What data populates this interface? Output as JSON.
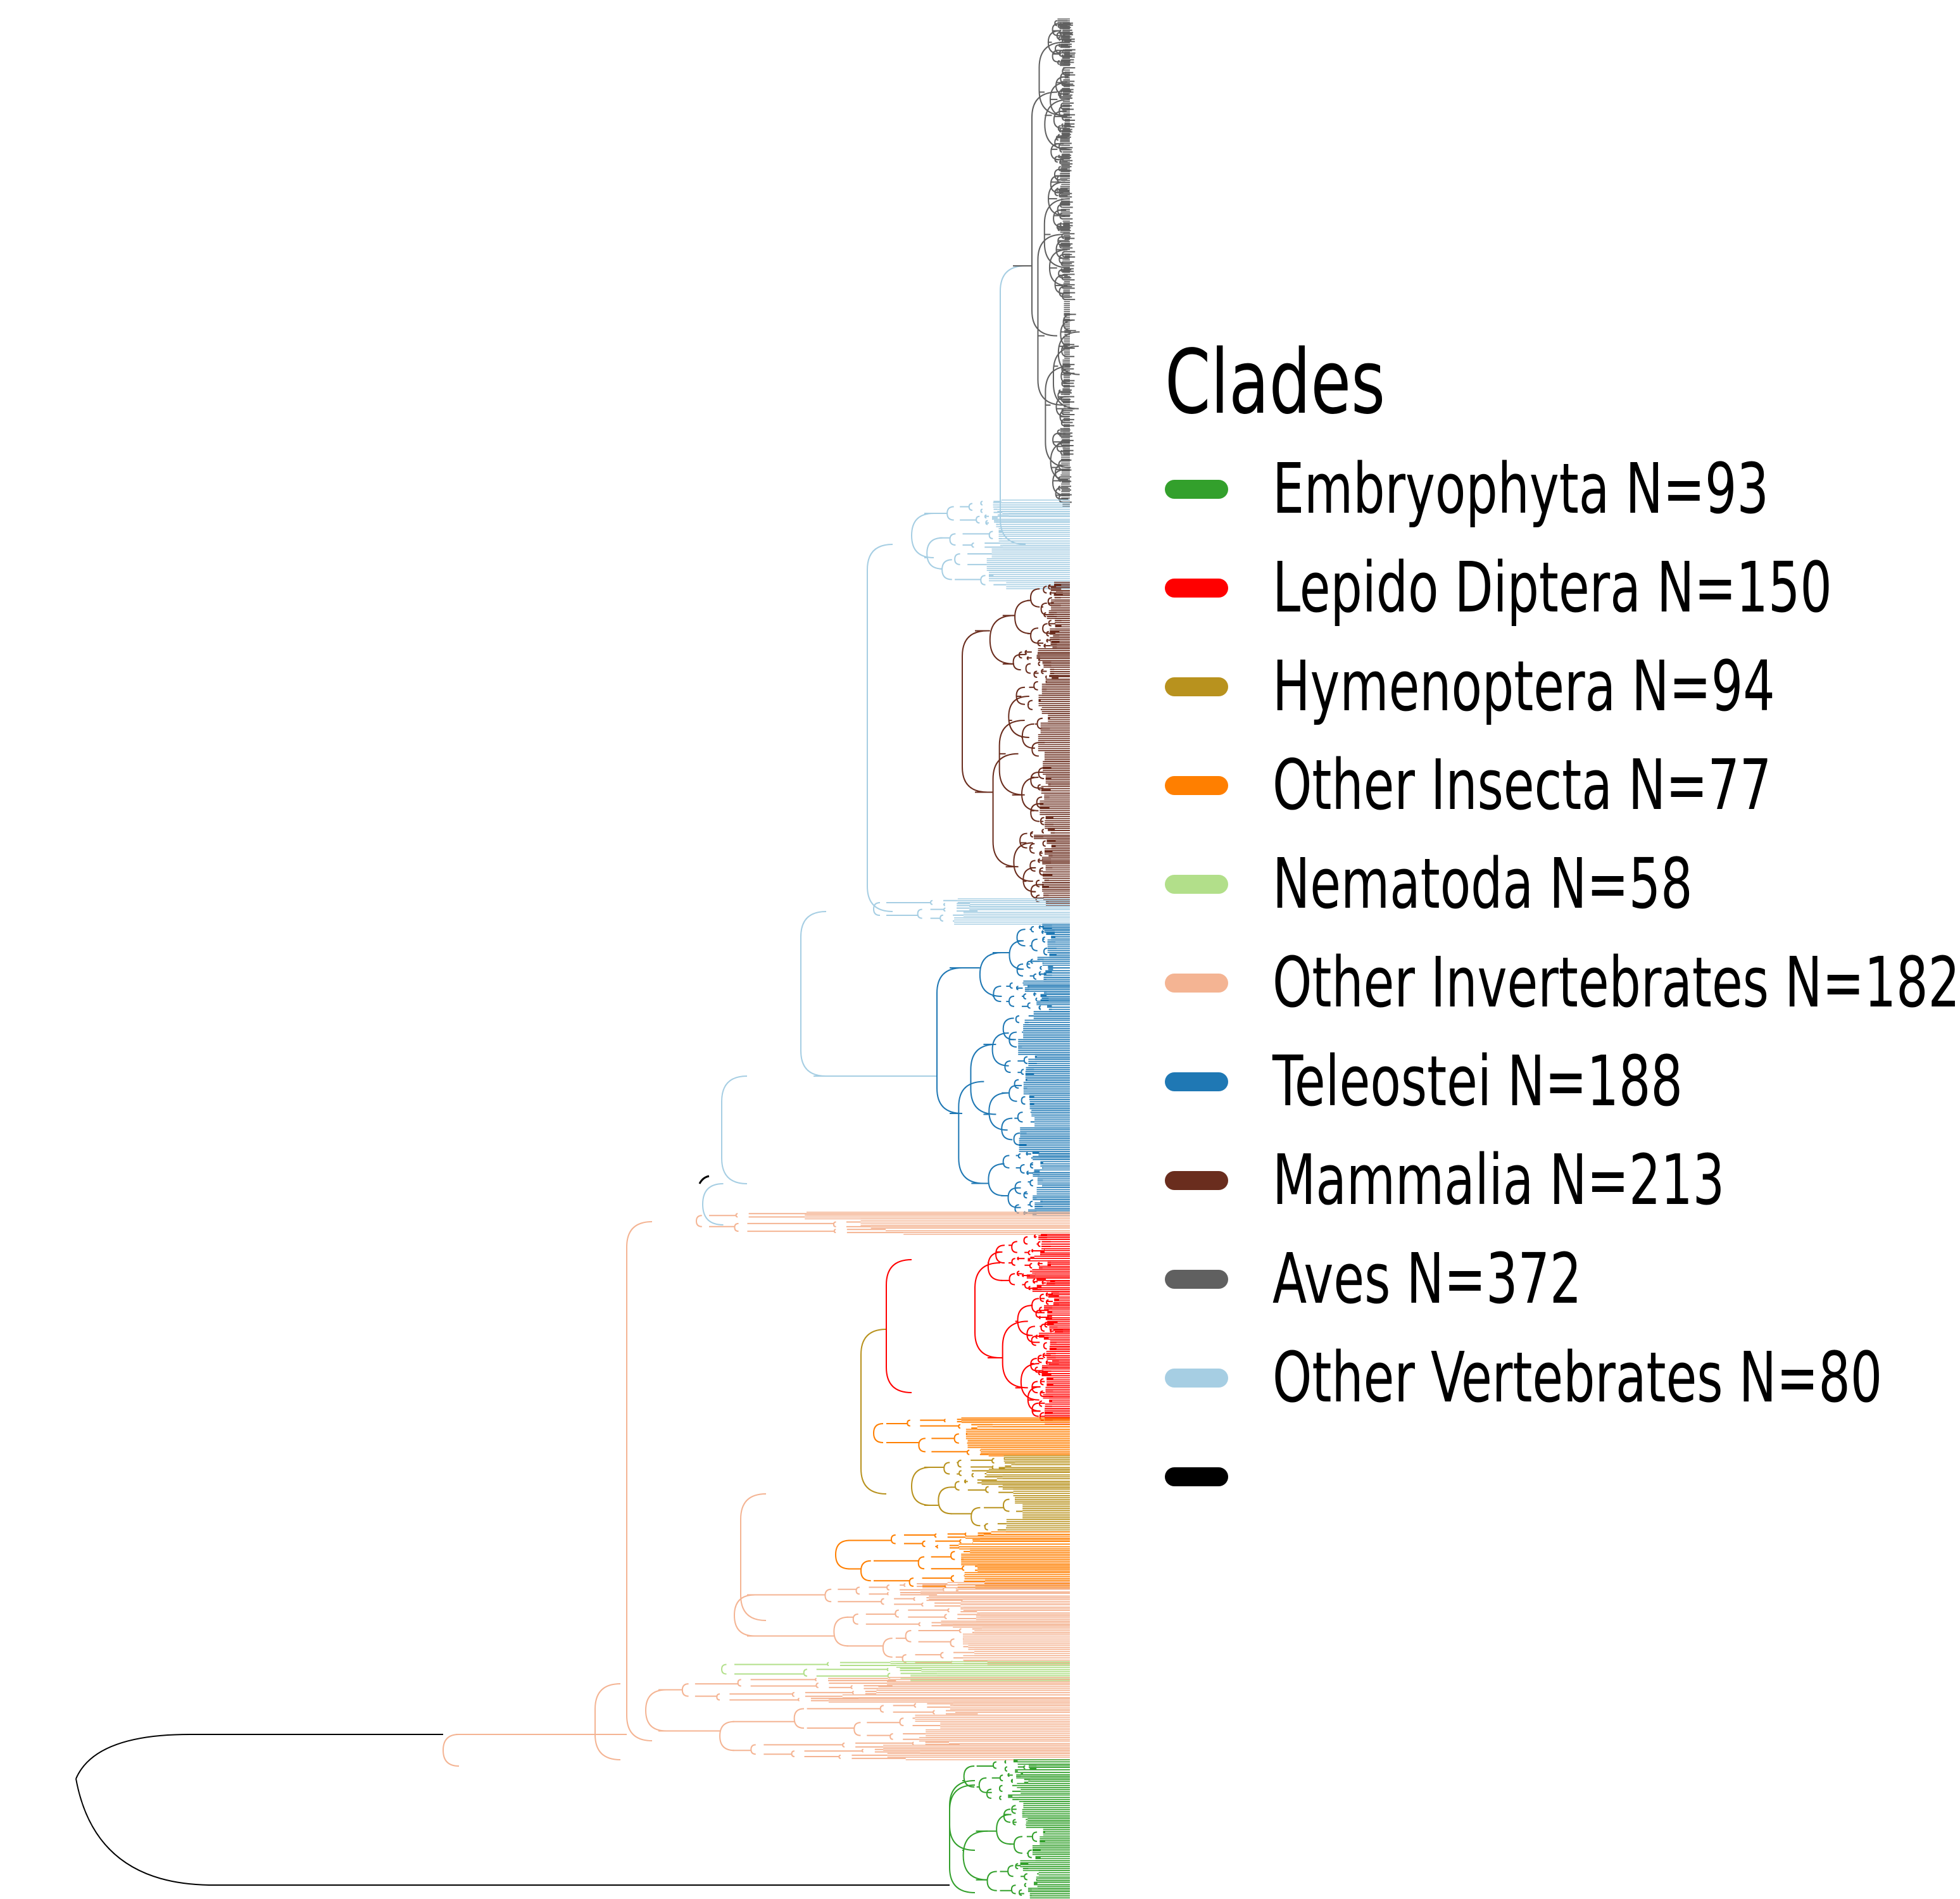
{
  "legend": {
    "title": "Clades",
    "items": [
      {
        "label": "Embryophyta N=93",
        "color": "#33a02c",
        "icon": "green-swatch"
      },
      {
        "label": "Lepido Diptera N=150",
        "color": "#ff0000",
        "icon": "red-swatch"
      },
      {
        "label": "Hymenoptera N=94",
        "color": "#b8921e",
        "icon": "olive-swatch"
      },
      {
        "label": "Other Insecta N=77",
        "color": "#ff7f00",
        "icon": "orange-swatch"
      },
      {
        "label": "Nematoda N=58",
        "color": "#b2df8a",
        "icon": "light-green-swatch"
      },
      {
        "label": "Other Invertebrates N=182",
        "color": "#f4b493",
        "icon": "peach-swatch"
      },
      {
        "label": "Teleostei N=188",
        "color": "#1f78b4",
        "icon": "blue-swatch"
      },
      {
        "label": "Mammalia N=213",
        "color": "#6a2d1e",
        "icon": "brown-swatch"
      },
      {
        "label": "Aves N=372",
        "color": "#606060",
        "icon": "gray-swatch"
      },
      {
        "label": "Other Vertebrates N=80",
        "color": "#a6cee3",
        "icon": "light-blue-swatch"
      },
      {
        "label": "",
        "color": "#000000",
        "icon": "black-swatch"
      }
    ]
  }
}
